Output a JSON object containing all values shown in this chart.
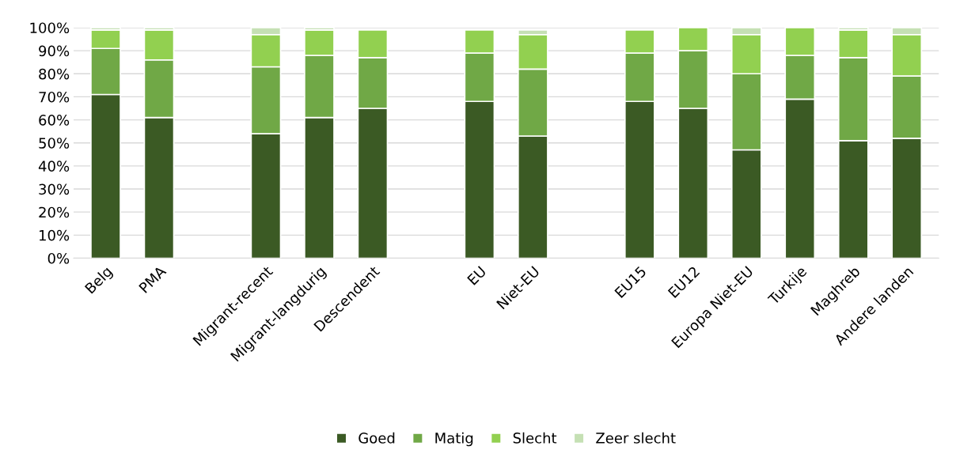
{
  "chart_data": {
    "type": "bar",
    "stacked": true,
    "categories": [
      "Belg",
      "PMA",
      null,
      "Migrant-recent",
      "Migrant-langdurig",
      "Descendent",
      null,
      "EU",
      "Niet-EU",
      null,
      "EU15",
      "EU12",
      "Europa Niet-EU",
      "Turkije",
      "Maghreb",
      "Andere landen"
    ],
    "series": [
      {
        "name": "Goed",
        "color": "#3b5a24",
        "values": [
          71,
          61,
          null,
          54,
          61,
          65,
          null,
          68,
          53,
          null,
          68,
          65,
          47,
          69,
          51,
          52
        ]
      },
      {
        "name": "Matig",
        "color": "#70a846",
        "values": [
          20,
          25,
          null,
          29,
          27,
          22,
          null,
          21,
          29,
          null,
          21,
          25,
          33,
          19,
          36,
          27
        ]
      },
      {
        "name": "Slecht",
        "color": "#92d050",
        "values": [
          8,
          13,
          null,
          14,
          11,
          12,
          null,
          10,
          15,
          null,
          10,
          10,
          17,
          12,
          12,
          18
        ]
      },
      {
        "name": "Zeer slecht",
        "color": "#c5e0b4",
        "values": [
          1,
          1,
          null,
          3,
          1,
          null,
          null,
          null,
          2,
          null,
          null,
          null,
          3,
          null,
          1,
          3
        ]
      }
    ],
    "ylim": [
      0,
      100
    ],
    "yticks": [
      {
        "value": 0,
        "label": "0%"
      },
      {
        "value": 10,
        "label": "10%"
      },
      {
        "value": 20,
        "label": "20%"
      },
      {
        "value": 30,
        "label": "30%"
      },
      {
        "value": 40,
        "label": "40%"
      },
      {
        "value": 50,
        "label": "50%"
      },
      {
        "value": 60,
        "label": "60%"
      },
      {
        "value": 70,
        "label": "70%"
      },
      {
        "value": 80,
        "label": "80%"
      },
      {
        "value": 90,
        "label": "90%"
      },
      {
        "value": 100,
        "label": "100%"
      }
    ],
    "grid": "y",
    "legend": "bottom"
  }
}
